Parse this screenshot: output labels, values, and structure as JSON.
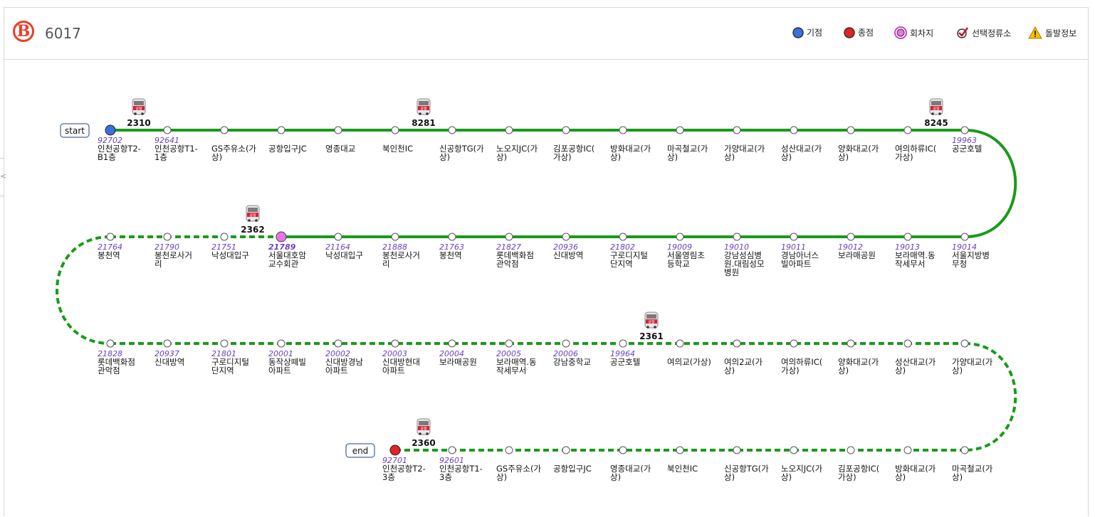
{
  "header": {
    "route_badge": "B",
    "route_number": "6017",
    "legend": [
      {
        "key": "start",
        "label": "기점",
        "icon": "blue-dot-icon",
        "color": "#3b6fe0"
      },
      {
        "key": "end",
        "label": "종점",
        "icon": "red-dot-icon",
        "color": "#e02424"
      },
      {
        "key": "turn",
        "label": "회차지",
        "icon": "pink-dot-icon",
        "color": "#e676e6"
      },
      {
        "key": "selected",
        "label": "선택정류소",
        "icon": "check-mark-icon",
        "color": "#c0102a"
      },
      {
        "key": "alert",
        "label": "돌발정보",
        "icon": "warning-icon",
        "color": "#f0b400"
      }
    ]
  },
  "colors": {
    "line": "#1a9a1a",
    "start": "#3b6fe0",
    "end": "#e02424",
    "turn": "#e676e6",
    "highlight": "#e02424",
    "station_id": "#6a3fc5"
  },
  "labels": {
    "start": "start",
    "end": "end"
  },
  "rows": [
    {
      "style": "solid",
      "stations": [
        {
          "id": "92702",
          "name": [
            "인천공항T2-",
            "B1층"
          ],
          "type": "start"
        },
        {
          "id": "92641",
          "name": [
            "인천공항T1-",
            "1층"
          ]
        },
        {
          "id": "",
          "name": [
            "GS주유소(가",
            "상)"
          ]
        },
        {
          "id": "",
          "name": [
            "공항입구JC"
          ]
        },
        {
          "id": "",
          "name": [
            "영종대교"
          ]
        },
        {
          "id": "",
          "name": [
            "북인천IC"
          ]
        },
        {
          "id": "",
          "name": [
            "신공항TG(가",
            "상)"
          ]
        },
        {
          "id": "",
          "name": [
            "노오지JC(가",
            "상)"
          ]
        },
        {
          "id": "",
          "name": [
            "김포공항IC(",
            "가상)"
          ]
        },
        {
          "id": "",
          "name": [
            "방화대교(가",
            "상)"
          ]
        },
        {
          "id": "",
          "name": [
            "마곡철교(가",
            "상)"
          ]
        },
        {
          "id": "",
          "name": [
            "가양대교(가",
            "상)"
          ]
        },
        {
          "id": "",
          "name": [
            "성산대교(가",
            "상)"
          ]
        },
        {
          "id": "",
          "name": [
            "양화대교(가",
            "상)"
          ]
        },
        {
          "id": "",
          "name": [
            "여의하류IC(",
            "가상)"
          ]
        },
        {
          "id": "19963",
          "name": [
            "공군호텔"
          ]
        }
      ]
    },
    {
      "style": "solid",
      "stations": [
        {
          "id": "21764",
          "name": [
            "봉천역"
          ]
        },
        {
          "id": "21790",
          "name": [
            "봉천로사거",
            "리"
          ]
        },
        {
          "id": "21751",
          "name": [
            "낙성대입구"
          ]
        },
        {
          "id": "21789",
          "name": [
            "서울대호암",
            "교수회관"
          ],
          "type": "turn"
        },
        {
          "id": "21164",
          "name": [
            "낙성대입구"
          ]
        },
        {
          "id": "21888",
          "name": [
            "봉천로사거",
            "리"
          ]
        },
        {
          "id": "21763",
          "name": [
            "봉천역"
          ]
        },
        {
          "id": "21827",
          "name": [
            "롯데백화점",
            "관악점"
          ]
        },
        {
          "id": "20936",
          "name": [
            "신대방역"
          ]
        },
        {
          "id": "21802",
          "name": [
            "구로디지털",
            "단지역"
          ]
        },
        {
          "id": "19009",
          "name": [
            "서울영림초",
            "등학교"
          ]
        },
        {
          "id": "19010",
          "name": [
            "강남성심병",
            "원.대림성모",
            "병원"
          ]
        },
        {
          "id": "19011",
          "name": [
            "경남아너스",
            "빌아파트"
          ]
        },
        {
          "id": "19012",
          "name": [
            "보라매공원"
          ]
        },
        {
          "id": "19013",
          "name": [
            "보라매역.동",
            "작세무서"
          ]
        },
        {
          "id": "19014",
          "name": [
            "서울지방병",
            "무청"
          ]
        }
      ]
    },
    {
      "style": "dashed",
      "stations": [
        {
          "id": "21828",
          "name": [
            "롯데백화점",
            "관악점"
          ]
        },
        {
          "id": "20937",
          "name": [
            "신대방역"
          ]
        },
        {
          "id": "21801",
          "name": [
            "구로디지털",
            "단지역"
          ]
        },
        {
          "id": "20001",
          "name": [
            "동작상떼빌",
            "아파트"
          ]
        },
        {
          "id": "20002",
          "name": [
            "신대방경남",
            "아파트"
          ]
        },
        {
          "id": "20003",
          "name": [
            "신대방현대",
            "아파트"
          ]
        },
        {
          "id": "20004",
          "name": [
            "보라매공원"
          ]
        },
        {
          "id": "20005",
          "name": [
            "보라매역.동",
            "작세무서"
          ]
        },
        {
          "id": "20006",
          "name": [
            "강남중학교"
          ]
        },
        {
          "id": "19964",
          "name": [
            "공군호텔"
          ]
        },
        {
          "id": "",
          "name": [
            "여의교(가상)"
          ]
        },
        {
          "id": "",
          "name": [
            "여의2교(가",
            "상)"
          ]
        },
        {
          "id": "",
          "name": [
            "여의하류IC(",
            "가상)"
          ]
        },
        {
          "id": "",
          "name": [
            "양화대교(가",
            "상)"
          ]
        },
        {
          "id": "",
          "name": [
            "성산대교(가",
            "상)"
          ]
        },
        {
          "id": "",
          "name": [
            "가양대교(가",
            "상)"
          ]
        }
      ]
    },
    {
      "style": "dashed",
      "stations": [
        {
          "id": "92701",
          "name": [
            "인천공항T2-",
            "3층"
          ],
          "type": "end"
        },
        {
          "id": "92601",
          "name": [
            "인천공항T1-",
            "3층"
          ]
        },
        {
          "id": "",
          "name": [
            "GS주유소(가",
            "상)"
          ]
        },
        {
          "id": "",
          "name": [
            "공항입구JC"
          ]
        },
        {
          "id": "",
          "name": [
            "영종대교(가",
            "상)"
          ]
        },
        {
          "id": "",
          "name": [
            "북인천IC"
          ]
        },
        {
          "id": "",
          "name": [
            "신공항TG(가",
            "상)"
          ]
        },
        {
          "id": "",
          "name": [
            "노오지JC(가",
            "상)"
          ]
        },
        {
          "id": "",
          "name": [
            "김포공항IC(",
            "가상)"
          ]
        },
        {
          "id": "",
          "name": [
            "방화대교(가",
            "상)"
          ]
        },
        {
          "id": "",
          "name": [
            "마곡철교(가",
            "상)"
          ]
        }
      ]
    }
  ],
  "row1_dashed_until": 3,
  "buses": [
    {
      "number": "2310",
      "row": 0,
      "index": 0
    },
    {
      "number": "8281",
      "row": 0,
      "index": 5
    },
    {
      "number": "8245",
      "row": 0,
      "index": 14
    },
    {
      "number": "2362",
      "row": 1,
      "index": 2
    },
    {
      "number": "2361",
      "row": 2,
      "index": 9
    },
    {
      "number": "2360",
      "row": 3,
      "index": 0
    }
  ],
  "bus_icon_text": "공항"
}
